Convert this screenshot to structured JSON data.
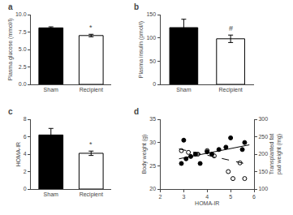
{
  "chart_data": [
    {
      "type": "bar",
      "title": "a",
      "categories": [
        "Sham",
        "Recipient"
      ],
      "values": [
        8.1,
        7.0
      ],
      "errors": [
        0.15,
        0.18
      ],
      "colors": [
        "black",
        "white"
      ],
      "ylabel": "Plasma glucose (mmol/l)",
      "ylim": [
        0,
        10.0
      ],
      "yticks": [
        {
          "value": 0.0,
          "label": "0.0"
        },
        2.5,
        {
          "value": 5.0,
          "label": "5.0"
        },
        7.5,
        {
          "value": 10.0,
          "label": "10.0"
        }
      ],
      "annotations": [
        {
          "category": "Recipient",
          "text": "*"
        }
      ],
      "grid": false
    },
    {
      "type": "bar",
      "title": "b",
      "categories": [
        "Sham",
        "Recipient"
      ],
      "values": [
        122.0,
        98.0
      ],
      "errors": [
        18.0,
        8.0
      ],
      "colors": [
        "black",
        "white"
      ],
      "ylabel": "Plasma insulin (pmol/l)",
      "ylim": [
        0,
        150
      ],
      "yticks": [
        0,
        50,
        100,
        150
      ],
      "annotations": [
        {
          "category": "Recipient",
          "text": "#"
        }
      ],
      "grid": false
    },
    {
      "type": "bar",
      "title": "c",
      "categories": [
        "Sham",
        "Recipient"
      ],
      "values": [
        6.2,
        4.1
      ],
      "errors": [
        0.75,
        0.25
      ],
      "colors": [
        "black",
        "white"
      ],
      "ylabel": "HOMA-IR",
      "ylim": [
        0,
        8
      ],
      "yticks": [
        0,
        2,
        4,
        6,
        8
      ],
      "annotations": [
        {
          "category": "Recipient",
          "text": "*"
        }
      ],
      "grid": false
    },
    {
      "type": "scatter",
      "title": "d",
      "xlabel": "HOMA-IR",
      "ylabel": "Body weight (g)",
      "y2label": "Transplanted fat\npad weight (mg)",
      "xlim": [
        2,
        6
      ],
      "xticks": [
        2,
        3,
        4,
        5,
        6
      ],
      "ylim": [
        20,
        35
      ],
      "yticks": [
        20,
        25,
        30,
        35
      ],
      "y2lim": [
        100,
        300
      ],
      "y2ticks": [
        100,
        150,
        200,
        250,
        300
      ],
      "grid": false,
      "series": [
        {
          "type": "scatter",
          "marker": "circle",
          "color": "black",
          "x": [
            2.9,
            3.0,
            3.1,
            3.3,
            3.5,
            3.7,
            4.0,
            4.2,
            4.5,
            4.8,
            5.0,
            5.5,
            5.6
          ],
          "values": [
            25.5,
            30.5,
            26.5,
            27.0,
            27.5,
            25.5,
            28.0,
            27.5,
            28.5,
            29.0,
            31.0,
            28.5,
            30.0
          ]
        },
        {
          "type": "line",
          "line_style": "solid",
          "color": "black",
          "x": [
            2.8,
            5.8
          ],
          "values": [
            26.5,
            29.5
          ]
        },
        {
          "type": "scatter",
          "marker": "circle-open",
          "color": "black",
          "axis": "y2",
          "x": [
            2.9,
            3.2,
            3.6,
            4.0,
            4.3,
            4.9,
            5.1,
            5.4,
            5.6
          ],
          "values": [
            210,
            205,
            200,
            210,
            195,
            150,
            130,
            175,
            130
          ]
        },
        {
          "type": "line",
          "line_style": "dashed",
          "color": "black",
          "axis": "y2",
          "x": [
            2.8,
            5.8
          ],
          "values": [
            215,
            170
          ]
        }
      ]
    }
  ]
}
